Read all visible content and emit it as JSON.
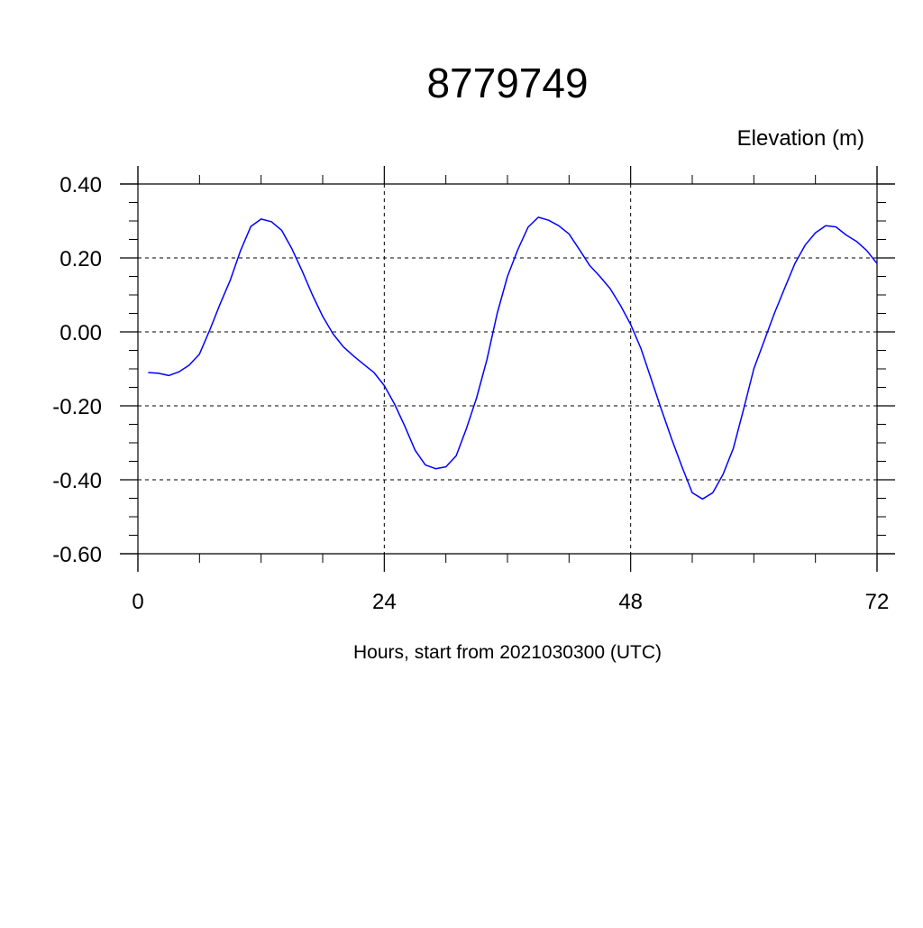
{
  "chart_data": {
    "type": "line",
    "title": "8779749",
    "ylabel": "Elevation (m)",
    "xlabel": "Hours, start from 2021030300 (UTC)",
    "xlim": [
      0,
      72
    ],
    "ylim": [
      -0.6,
      0.4
    ],
    "x_ticks": [
      {
        "value": 0,
        "label": "0"
      },
      {
        "value": 24,
        "label": "24"
      },
      {
        "value": 48,
        "label": "48"
      },
      {
        "value": 72,
        "label": "72"
      }
    ],
    "y_ticks": [
      {
        "value": 0.4,
        "label": "0.40"
      },
      {
        "value": 0.2,
        "label": "0.20"
      },
      {
        "value": 0.0,
        "label": "0.00"
      },
      {
        "value": -0.2,
        "label": "-0.20"
      },
      {
        "value": -0.4,
        "label": "-0.40"
      },
      {
        "value": -0.6,
        "label": "-0.60"
      }
    ],
    "grid": true,
    "series": [
      {
        "color": "#0000ff",
        "x": [
          1,
          2,
          3,
          4,
          5,
          6,
          7,
          8,
          9,
          10,
          11,
          12,
          13,
          14,
          15,
          16,
          17,
          18,
          19,
          20,
          21,
          22,
          23,
          24,
          25,
          26,
          27,
          28,
          29,
          30,
          31,
          32,
          33,
          34,
          35,
          36,
          37,
          38,
          39,
          40,
          41,
          42,
          43,
          44,
          45,
          46,
          47,
          48,
          49,
          50,
          51,
          52,
          53,
          54,
          55,
          56,
          57,
          58,
          59,
          60,
          61,
          62,
          63,
          64,
          65,
          66,
          67,
          68,
          69,
          70,
          71,
          72
        ],
        "y": [
          -0.11,
          -0.112,
          -0.118,
          -0.108,
          -0.09,
          -0.06,
          0.005,
          0.075,
          0.14,
          0.22,
          0.285,
          0.305,
          0.298,
          0.275,
          0.225,
          0.165,
          0.1,
          0.042,
          -0.005,
          -0.04,
          -0.065,
          -0.088,
          -0.11,
          -0.145,
          -0.195,
          -0.255,
          -0.32,
          -0.36,
          -0.37,
          -0.365,
          -0.335,
          -0.262,
          -0.178,
          -0.075,
          0.05,
          0.15,
          0.222,
          0.283,
          0.31,
          0.302,
          0.287,
          0.265,
          0.223,
          0.18,
          0.15,
          0.117,
          0.072,
          0.02,
          -0.045,
          -0.127,
          -0.21,
          -0.29,
          -0.365,
          -0.435,
          -0.452,
          -0.435,
          -0.385,
          -0.315,
          -0.21,
          -0.1,
          -0.025,
          0.05,
          0.118,
          0.185,
          0.235,
          0.268,
          0.287,
          0.284,
          0.262,
          0.245,
          0.22,
          0.185
        ]
      }
    ]
  }
}
